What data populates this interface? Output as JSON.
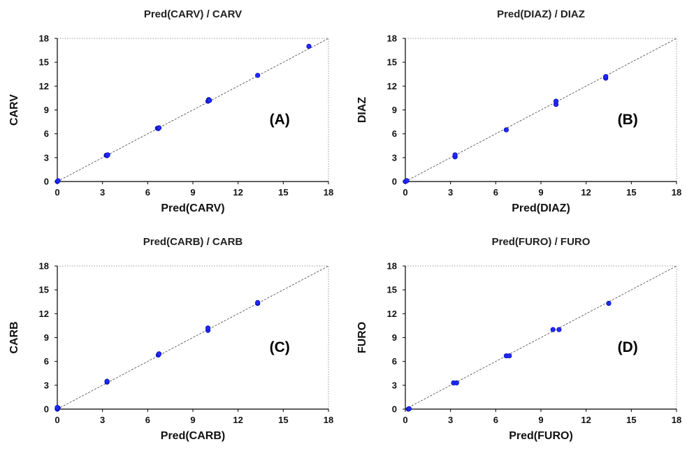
{
  "colors": {
    "point": "#1f2bff",
    "point_edge": "#0a0aa8",
    "identity_line": "#555555",
    "axis": "#000000",
    "frame": "#9a9a9a"
  },
  "chart_data": [
    {
      "type": "scatter",
      "title": "Pred(CARV) / CARV",
      "xlabel": "Pred(CARV)",
      "ylabel": "CARV",
      "panel_label": "(A)",
      "xlim": [
        0,
        18
      ],
      "ylim": [
        0,
        18
      ],
      "ticks": [
        "0",
        "3",
        "6",
        "9",
        "12",
        "15",
        "18"
      ],
      "identity_line": true,
      "points": [
        [
          0,
          0
        ],
        [
          0.05,
          0.1
        ],
        [
          3.25,
          3.3
        ],
        [
          3.3,
          3.25
        ],
        [
          3.35,
          3.35
        ],
        [
          6.65,
          6.7
        ],
        [
          6.7,
          6.65
        ],
        [
          6.75,
          6.75
        ],
        [
          10,
          10.1
        ],
        [
          10.05,
          10.3
        ],
        [
          10.1,
          10.2
        ],
        [
          13.3,
          13.35
        ],
        [
          16.7,
          17
        ]
      ]
    },
    {
      "type": "scatter",
      "title": "Pred(DIAZ) / DIAZ",
      "xlabel": "Pred(DIAZ)",
      "ylabel": "DIAZ",
      "panel_label": "(B)",
      "xlim": [
        0,
        18
      ],
      "ylim": [
        0,
        18
      ],
      "ticks": [
        "0",
        "3",
        "6",
        "9",
        "12",
        "15",
        "18"
      ],
      "identity_line": true,
      "points": [
        [
          0,
          0
        ],
        [
          0.1,
          0.1
        ],
        [
          3.3,
          3.1
        ],
        [
          3.3,
          3.35
        ],
        [
          6.7,
          6.5
        ],
        [
          10,
          9.7
        ],
        [
          10,
          10.1
        ],
        [
          13.3,
          13
        ],
        [
          13.3,
          13.2
        ]
      ]
    },
    {
      "type": "scatter",
      "title": "Pred(CARB) / CARB",
      "xlabel": "Pred(CARB)",
      "ylabel": "CARB",
      "panel_label": "(C)",
      "xlim": [
        0,
        18
      ],
      "ylim": [
        0,
        18
      ],
      "ticks": [
        "0",
        "3",
        "6",
        "9",
        "12",
        "15",
        "18"
      ],
      "identity_line": true,
      "points": [
        [
          0,
          0
        ],
        [
          0.05,
          0.15
        ],
        [
          0,
          0.2
        ],
        [
          3.3,
          3.4
        ],
        [
          3.3,
          3.5
        ],
        [
          6.7,
          6.8
        ],
        [
          6.75,
          6.95
        ],
        [
          10,
          9.9
        ],
        [
          10,
          10.2
        ],
        [
          13.3,
          13.3
        ],
        [
          13.3,
          13.4
        ]
      ]
    },
    {
      "type": "scatter",
      "title": "Pred(FURO) / FURO",
      "xlabel": "Pred(FURO)",
      "ylabel": "FURO",
      "panel_label": "(D)",
      "xlim": [
        0,
        18
      ],
      "ylim": [
        0,
        18
      ],
      "ticks": [
        "0",
        "3",
        "6",
        "9",
        "12",
        "15",
        "18"
      ],
      "identity_line": true,
      "points": [
        [
          0.2,
          0
        ],
        [
          0.25,
          0.05
        ],
        [
          3.2,
          3.3
        ],
        [
          3.4,
          3.3
        ],
        [
          6.7,
          6.7
        ],
        [
          6.9,
          6.7
        ],
        [
          9.8,
          10
        ],
        [
          10.2,
          10
        ],
        [
          13.5,
          13.3
        ]
      ]
    }
  ]
}
